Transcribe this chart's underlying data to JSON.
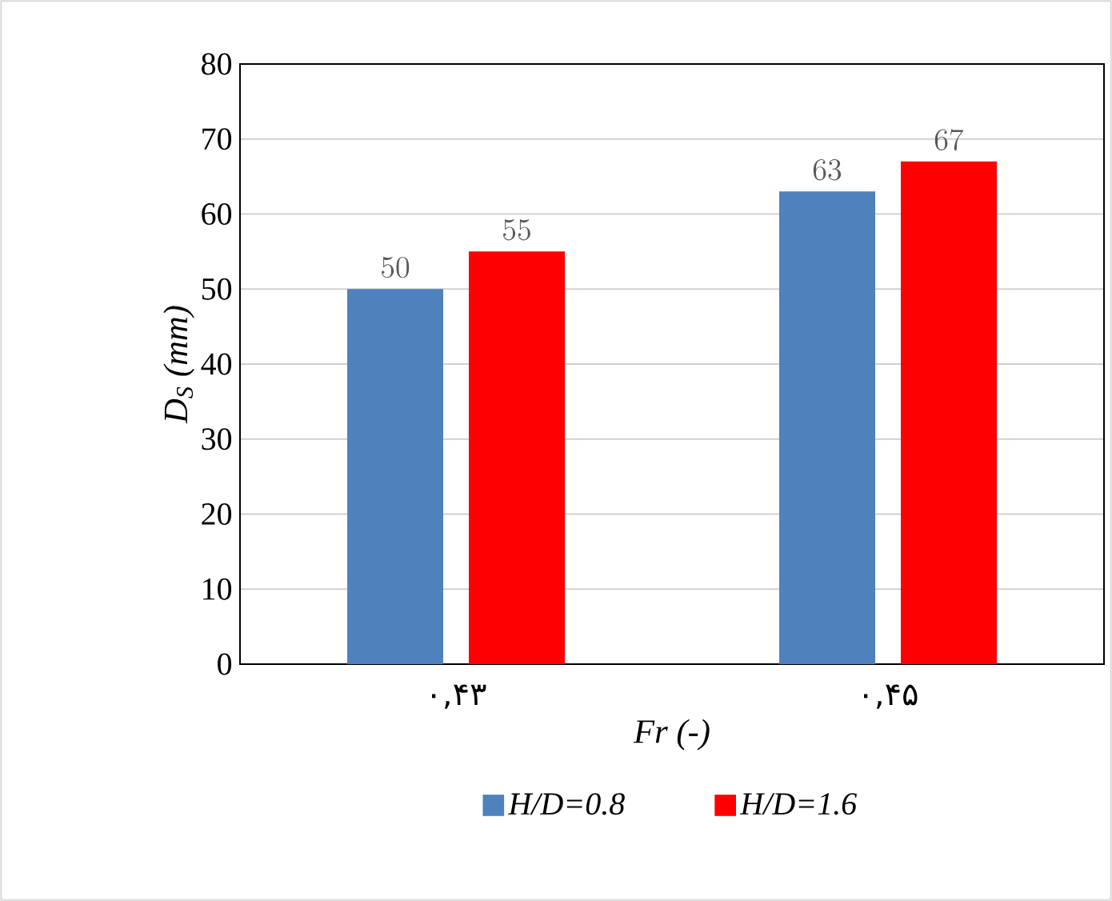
{
  "chart_data": {
    "type": "bar",
    "xlabel": "Fr (-)",
    "ylabel": "D$_{S}$ (mm)",
    "categories": [
      "۰,۴۳",
      "۰,۴۵"
    ],
    "series": [
      {
        "name": "H/D=0.8",
        "color": "#4f81bd",
        "values": [
          50,
          63
        ]
      },
      {
        "name": "H/D=1.6",
        "color": "#ff0000",
        "values": [
          55,
          67
        ]
      }
    ],
    "ylim": [
      0,
      80
    ],
    "yticks": [
      0,
      10,
      20,
      30,
      40,
      50,
      60,
      70,
      80
    ],
    "grid": "y",
    "legend": "bottom",
    "data_labels": true
  }
}
